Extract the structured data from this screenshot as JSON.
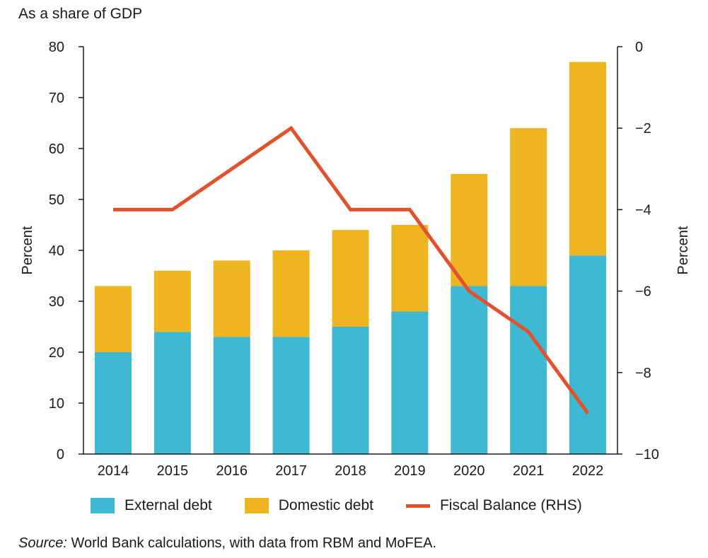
{
  "chart_data": {
    "type": "bar",
    "stacked": true,
    "subtitle": "As a share of GDP",
    "ylabel": "Percent",
    "y2label": "Percent",
    "ylim": [
      0,
      80
    ],
    "y2lim": [
      -10,
      0
    ],
    "yticks": [
      0,
      10,
      20,
      30,
      40,
      50,
      60,
      70,
      80
    ],
    "y2ticks": [
      0,
      -2,
      -4,
      -6,
      -8,
      -10
    ],
    "y2tick_labels": [
      "0",
      "−2",
      "−4",
      "−6",
      "−8",
      "−10"
    ],
    "categories": [
      "2014",
      "2015",
      "2016",
      "2017",
      "2018",
      "2019",
      "2020",
      "2021",
      "2022"
    ],
    "series": [
      {
        "name": "External debt",
        "type": "bar",
        "axis": "left",
        "color": "#3db9d3",
        "values": [
          20,
          24,
          23,
          23,
          25,
          28,
          33,
          33,
          39
        ]
      },
      {
        "name": "Domestic debt",
        "type": "bar",
        "axis": "left",
        "color": "#efb520",
        "values": [
          13,
          12,
          15,
          17,
          19,
          17,
          22,
          31,
          38
        ]
      },
      {
        "name": "Fiscal Balance (RHS)",
        "type": "line",
        "axis": "right",
        "color": "#e4502b",
        "values": [
          -4,
          -4,
          -3,
          -2,
          -4,
          -4,
          -6,
          -7,
          -9
        ]
      }
    ],
    "legend": {
      "position": "bottom"
    },
    "grid": false
  },
  "source": {
    "label": "Source:",
    "text": " World Bank calculations, with data from RBM and MoFEA."
  }
}
